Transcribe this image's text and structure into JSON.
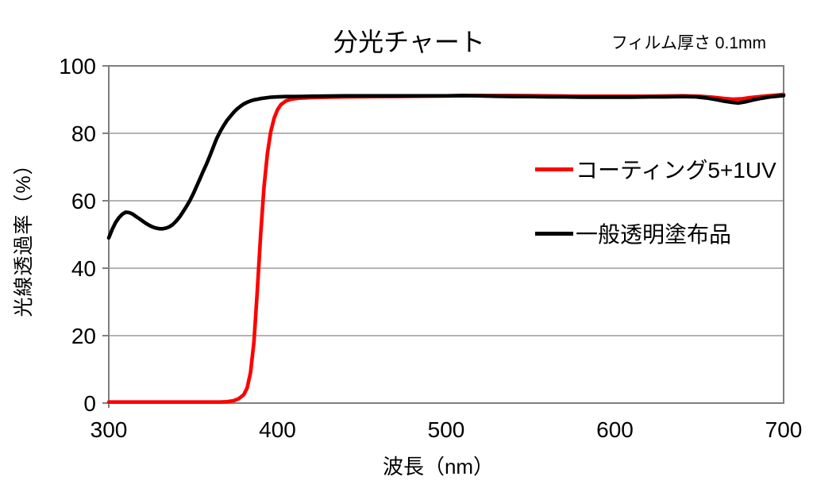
{
  "chart_data": {
    "type": "line",
    "title": "分光チャート",
    "annotation": "フィルム厚さ 0.1mm",
    "xlabel": "波長（nm）",
    "ylabel": "光線透過率（%）",
    "xlim": [
      300,
      700
    ],
    "ylim": [
      0,
      100
    ],
    "x_ticks": [
      300,
      400,
      500,
      600,
      700
    ],
    "y_ticks": [
      0,
      20,
      40,
      60,
      80,
      100
    ],
    "grid": "horizontal-only",
    "legend_position": "inside-right",
    "colors": {
      "axis": "#7f7f7f",
      "grid": "#9a9a9a",
      "text": "#000000",
      "background": "#ffffff"
    },
    "series": [
      {
        "name": "コーティング5+1UV",
        "color": "#ff0000",
        "points": [
          [
            300,
            0.3
          ],
          [
            310,
            0.3
          ],
          [
            320,
            0.3
          ],
          [
            330,
            0.3
          ],
          [
            340,
            0.3
          ],
          [
            350,
            0.3
          ],
          [
            360,
            0.3
          ],
          [
            366,
            0.3
          ],
          [
            370,
            0.4
          ],
          [
            374,
            0.7
          ],
          [
            377,
            1.3
          ],
          [
            380,
            2.5
          ],
          [
            382,
            4.5
          ],
          [
            384,
            9
          ],
          [
            386,
            18
          ],
          [
            388,
            33
          ],
          [
            390,
            50
          ],
          [
            392,
            64
          ],
          [
            394,
            74
          ],
          [
            396,
            80.5
          ],
          [
            398,
            84.5
          ],
          [
            400,
            87
          ],
          [
            402,
            88.5
          ],
          [
            405,
            89.6
          ],
          [
            408,
            90.1
          ],
          [
            412,
            90.4
          ],
          [
            420,
            90.6
          ],
          [
            430,
            90.7
          ],
          [
            440,
            90.8
          ],
          [
            460,
            90.9
          ],
          [
            480,
            91.0
          ],
          [
            500,
            91.1
          ],
          [
            520,
            91.2
          ],
          [
            540,
            91.2
          ],
          [
            560,
            91.1
          ],
          [
            580,
            91.0
          ],
          [
            600,
            91.0
          ],
          [
            620,
            91.0
          ],
          [
            640,
            91.1
          ],
          [
            650,
            91.0
          ],
          [
            658,
            90.7
          ],
          [
            665,
            90.3
          ],
          [
            670,
            90.1
          ],
          [
            675,
            90.2
          ],
          [
            680,
            90.6
          ],
          [
            688,
            91.0
          ],
          [
            695,
            91.3
          ],
          [
            700,
            91.5
          ]
        ]
      },
      {
        "name": "一般透明塗布品",
        "color": "#000000",
        "points": [
          [
            300,
            49
          ],
          [
            302,
            51.5
          ],
          [
            304,
            53.5
          ],
          [
            306,
            55
          ],
          [
            308,
            56
          ],
          [
            310,
            56.6
          ],
          [
            312,
            56.5
          ],
          [
            314,
            56.1
          ],
          [
            316,
            55.4
          ],
          [
            318,
            54.7
          ],
          [
            320,
            54
          ],
          [
            322,
            53.3
          ],
          [
            324,
            52.7
          ],
          [
            326,
            52.2
          ],
          [
            328,
            51.9
          ],
          [
            330,
            51.7
          ],
          [
            332,
            51.7
          ],
          [
            334,
            51.9
          ],
          [
            336,
            52.3
          ],
          [
            338,
            53
          ],
          [
            340,
            54
          ],
          [
            342,
            55.2
          ],
          [
            344,
            56.7
          ],
          [
            346,
            58.3
          ],
          [
            348,
            60
          ],
          [
            350,
            62
          ],
          [
            352,
            64.2
          ],
          [
            354,
            66.5
          ],
          [
            356,
            68.8
          ],
          [
            358,
            71
          ],
          [
            360,
            73.4
          ],
          [
            362,
            76
          ],
          [
            364,
            78.5
          ],
          [
            366,
            80.5
          ],
          [
            368,
            82.2
          ],
          [
            370,
            83.8
          ],
          [
            372,
            85
          ],
          [
            374,
            86.2
          ],
          [
            376,
            87.2
          ],
          [
            378,
            88
          ],
          [
            380,
            88.7
          ],
          [
            382,
            89.2
          ],
          [
            384,
            89.6
          ],
          [
            386,
            89.9
          ],
          [
            388,
            90.1
          ],
          [
            390,
            90.3
          ],
          [
            393,
            90.5
          ],
          [
            396,
            90.7
          ],
          [
            400,
            90.8
          ],
          [
            405,
            90.9
          ],
          [
            410,
            90.9
          ],
          [
            420,
            91.0
          ],
          [
            440,
            91.1
          ],
          [
            460,
            91.1
          ],
          [
            480,
            91.1
          ],
          [
            500,
            91.1
          ],
          [
            510,
            91.2
          ],
          [
            520,
            91.1
          ],
          [
            530,
            91.0
          ],
          [
            540,
            90.9
          ],
          [
            550,
            90.9
          ],
          [
            560,
            90.8
          ],
          [
            570,
            90.8
          ],
          [
            580,
            90.7
          ],
          [
            590,
            90.7
          ],
          [
            600,
            90.7
          ],
          [
            610,
            90.7
          ],
          [
            620,
            90.8
          ],
          [
            630,
            90.8
          ],
          [
            640,
            90.9
          ],
          [
            648,
            90.8
          ],
          [
            654,
            90.5
          ],
          [
            660,
            90.0
          ],
          [
            665,
            89.5
          ],
          [
            669,
            89.2
          ],
          [
            673,
            89.0
          ],
          [
            677,
            89.3
          ],
          [
            682,
            89.9
          ],
          [
            687,
            90.4
          ],
          [
            692,
            90.8
          ],
          [
            700,
            91.2
          ]
        ]
      }
    ]
  }
}
